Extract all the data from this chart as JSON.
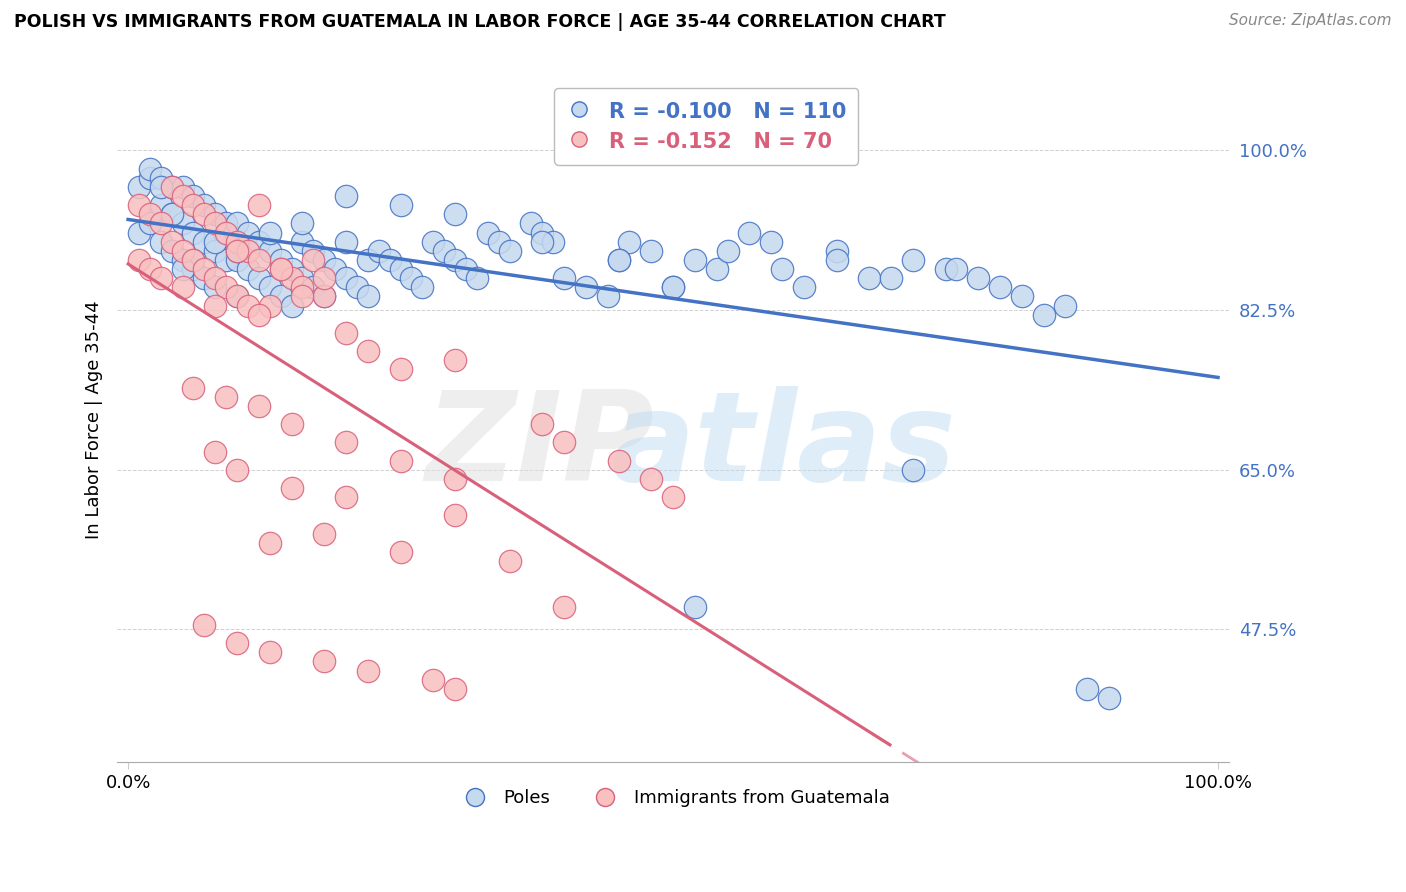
{
  "title": "POLISH VS IMMIGRANTS FROM GUATEMALA IN LABOR FORCE | AGE 35-44 CORRELATION CHART",
  "source": "Source: ZipAtlas.com",
  "ylabel": "In Labor Force | Age 35-44",
  "xlim": [
    -0.01,
    1.01
  ],
  "ylim": [
    0.33,
    1.08
  ],
  "yticks": [
    0.475,
    0.65,
    0.825,
    1.0
  ],
  "ytick_labels": [
    "47.5%",
    "65.0%",
    "82.5%",
    "100.0%"
  ],
  "xticks": [
    0.0,
    1.0
  ],
  "xtick_labels": [
    "0.0%",
    "100.0%"
  ],
  "r_blue": -0.1,
  "n_blue": 110,
  "r_pink": -0.152,
  "n_pink": 70,
  "blue_fill": "#c5d9ef",
  "blue_edge": "#4472c4",
  "pink_fill": "#f9c0c0",
  "pink_edge": "#d9607a",
  "blue_line": "#4472c4",
  "pink_line": "#d9607a",
  "legend_label_blue": "Poles",
  "legend_label_pink": "Immigrants from Guatemala",
  "blue_scatter_x": [
    0.01,
    0.01,
    0.02,
    0.02,
    0.02,
    0.03,
    0.03,
    0.03,
    0.04,
    0.04,
    0.04,
    0.05,
    0.05,
    0.05,
    0.06,
    0.06,
    0.06,
    0.07,
    0.07,
    0.07,
    0.08,
    0.08,
    0.08,
    0.09,
    0.09,
    0.1,
    0.1,
    0.1,
    0.11,
    0.11,
    0.12,
    0.12,
    0.13,
    0.13,
    0.14,
    0.14,
    0.15,
    0.15,
    0.16,
    0.16,
    0.17,
    0.17,
    0.18,
    0.18,
    0.19,
    0.2,
    0.2,
    0.21,
    0.22,
    0.22,
    0.23,
    0.24,
    0.25,
    0.26,
    0.27,
    0.28,
    0.29,
    0.3,
    0.31,
    0.32,
    0.33,
    0.34,
    0.35,
    0.37,
    0.38,
    0.39,
    0.4,
    0.42,
    0.44,
    0.46,
    0.48,
    0.5,
    0.52,
    0.54,
    0.57,
    0.59,
    0.62,
    0.65,
    0.68,
    0.72,
    0.75,
    0.78,
    0.82,
    0.72,
    0.52,
    0.45,
    0.38,
    0.3,
    0.25,
    0.2,
    0.16,
    0.13,
    0.1,
    0.08,
    0.06,
    0.05,
    0.04,
    0.03,
    0.88,
    0.9,
    0.86,
    0.84,
    0.8,
    0.76,
    0.7,
    0.65,
    0.6,
    0.55,
    0.5,
    0.45
  ],
  "blue_scatter_y": [
    0.91,
    0.96,
    0.92,
    0.97,
    0.98,
    0.9,
    0.94,
    0.97,
    0.89,
    0.93,
    0.96,
    0.88,
    0.92,
    0.96,
    0.87,
    0.91,
    0.95,
    0.86,
    0.9,
    0.94,
    0.85,
    0.89,
    0.93,
    0.88,
    0.92,
    0.84,
    0.88,
    0.92,
    0.87,
    0.91,
    0.86,
    0.9,
    0.85,
    0.89,
    0.84,
    0.88,
    0.83,
    0.87,
    0.86,
    0.9,
    0.85,
    0.89,
    0.84,
    0.88,
    0.87,
    0.86,
    0.9,
    0.85,
    0.84,
    0.88,
    0.89,
    0.88,
    0.87,
    0.86,
    0.85,
    0.9,
    0.89,
    0.88,
    0.87,
    0.86,
    0.91,
    0.9,
    0.89,
    0.92,
    0.91,
    0.9,
    0.86,
    0.85,
    0.84,
    0.9,
    0.89,
    0.85,
    0.88,
    0.87,
    0.91,
    0.9,
    0.85,
    0.89,
    0.86,
    0.88,
    0.87,
    0.86,
    0.84,
    0.65,
    0.5,
    0.88,
    0.9,
    0.93,
    0.94,
    0.95,
    0.92,
    0.91,
    0.89,
    0.9,
    0.88,
    0.87,
    0.93,
    0.96,
    0.41,
    0.4,
    0.83,
    0.82,
    0.85,
    0.87,
    0.86,
    0.88,
    0.87,
    0.89,
    0.85,
    0.88
  ],
  "pink_scatter_x": [
    0.01,
    0.01,
    0.02,
    0.02,
    0.03,
    0.03,
    0.04,
    0.04,
    0.05,
    0.05,
    0.06,
    0.06,
    0.07,
    0.07,
    0.08,
    0.08,
    0.09,
    0.09,
    0.1,
    0.1,
    0.11,
    0.11,
    0.12,
    0.12,
    0.13,
    0.14,
    0.15,
    0.16,
    0.17,
    0.18,
    0.05,
    0.08,
    0.1,
    0.12,
    0.14,
    0.16,
    0.18,
    0.2,
    0.22,
    0.25,
    0.06,
    0.09,
    0.12,
    0.15,
    0.2,
    0.25,
    0.3,
    0.3,
    0.35,
    0.4,
    0.07,
    0.1,
    0.13,
    0.18,
    0.22,
    0.28,
    0.3,
    0.13,
    0.18,
    0.25,
    0.3,
    0.2,
    0.15,
    0.1,
    0.08,
    0.38,
    0.4,
    0.45,
    0.48,
    0.5
  ],
  "pink_scatter_y": [
    0.88,
    0.94,
    0.87,
    0.93,
    0.86,
    0.92,
    0.9,
    0.96,
    0.89,
    0.95,
    0.88,
    0.94,
    0.87,
    0.93,
    0.86,
    0.92,
    0.85,
    0.91,
    0.84,
    0.9,
    0.83,
    0.89,
    0.88,
    0.94,
    0.83,
    0.87,
    0.86,
    0.85,
    0.88,
    0.84,
    0.85,
    0.83,
    0.89,
    0.82,
    0.87,
    0.84,
    0.86,
    0.8,
    0.78,
    0.76,
    0.74,
    0.73,
    0.72,
    0.7,
    0.68,
    0.66,
    0.64,
    0.77,
    0.55,
    0.5,
    0.48,
    0.46,
    0.45,
    0.44,
    0.43,
    0.42,
    0.41,
    0.57,
    0.58,
    0.56,
    0.6,
    0.62,
    0.63,
    0.65,
    0.67,
    0.7,
    0.68,
    0.66,
    0.64,
    0.62
  ]
}
